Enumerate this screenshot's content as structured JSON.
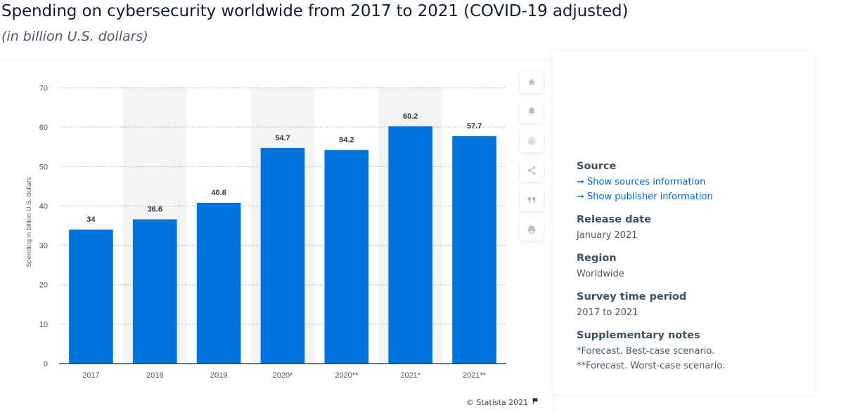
{
  "page": {
    "title": "Spending on cybersecurity worldwide from 2017 to 2021 (COVID-19 adjusted)",
    "subtitle": "(in billion U.S. dollars)"
  },
  "chart_data": {
    "type": "bar",
    "categories": [
      "2017",
      "2018",
      "2019",
      "2020*",
      "2020**",
      "2021*",
      "2021**"
    ],
    "values": [
      34,
      36.6,
      40.8,
      54.7,
      54.2,
      60.2,
      57.7
    ],
    "data_labels": [
      "34",
      "36.6",
      "40.8",
      "54.7",
      "54.2",
      "60.2",
      "57.7"
    ],
    "title": "",
    "xlabel": "",
    "ylabel": "Spending in billion U.S. dollars",
    "ylim": [
      0,
      70
    ],
    "yticks": [
      0,
      10,
      20,
      30,
      40,
      50,
      60,
      70
    ],
    "grid": true,
    "legend": "none",
    "bar_color": "#0073df",
    "alternate_band_color": "#f4f4f5"
  },
  "toolbar": [
    {
      "icon": "star-icon"
    },
    {
      "icon": "bell-icon"
    },
    {
      "icon": "gear-icon"
    },
    {
      "icon": "share-icon"
    },
    {
      "icon": "quote-icon"
    },
    {
      "icon": "print-icon"
    }
  ],
  "copyright": {
    "text": "© Statista 2021",
    "icon": "flag-icon"
  },
  "info": {
    "source": {
      "heading": "Source",
      "link_sources": "➞ Show sources information",
      "link_publisher": "➞ Show publisher information"
    },
    "release_date": {
      "heading": "Release date",
      "value": "January 2021"
    },
    "region": {
      "heading": "Region",
      "value": "Worldwide"
    },
    "survey_period": {
      "heading": "Survey time period",
      "value": "2017 to 2021"
    },
    "notes": {
      "heading": "Supplementary notes",
      "line1": "*Forecast. Best-case scenario.",
      "line2": "**Forecast. Worst-case scenario."
    }
  },
  "colors": {
    "accent_link": "#0066d6",
    "title": "#0f1f33"
  }
}
